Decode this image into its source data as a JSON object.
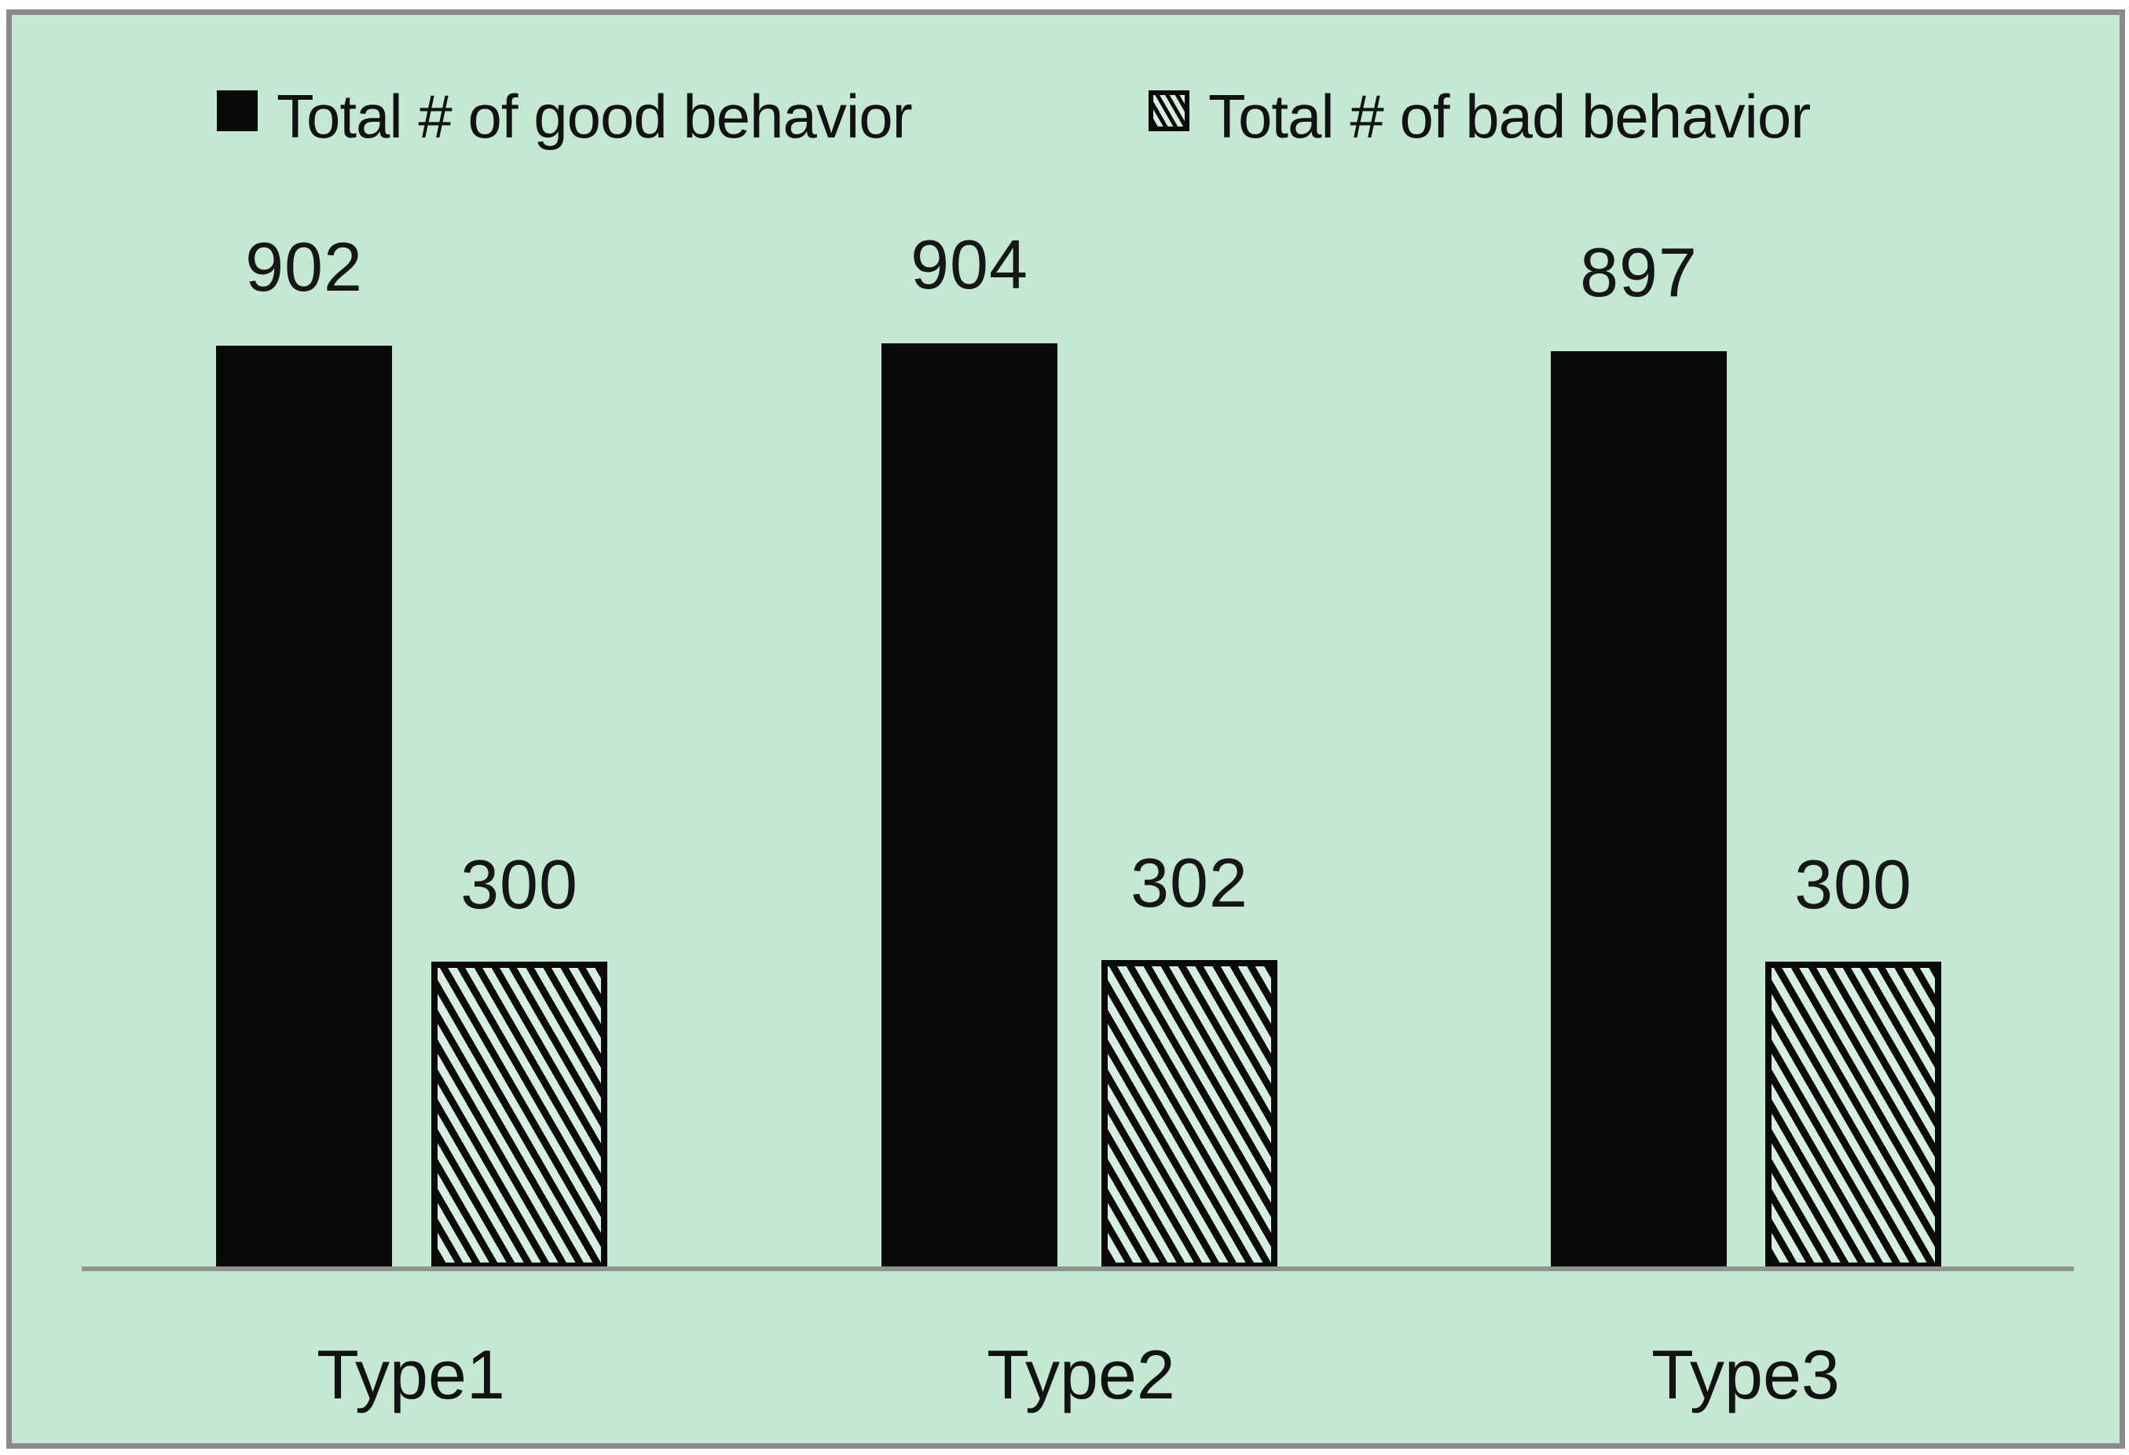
{
  "colors": {
    "background": "#c5e8d2",
    "frame_gray": "#8a8a8a",
    "axis_gray": "#8f948f",
    "bar_black": "#0a0a0a",
    "hatch_gap_green": "#d7efe0",
    "text": "#121212"
  },
  "legend": {
    "position": "top",
    "good_swatch_icon": "solid-black-square",
    "bad_swatch_icon": "diagonal-hatch-square"
  },
  "chart_data": {
    "type": "bar",
    "title": "",
    "xlabel": "",
    "ylabel": "",
    "categories": [
      "Type1",
      "Type2",
      "Type3"
    ],
    "series": [
      {
        "name": "Total # of good behavior",
        "fill": "solid-black",
        "values": [
          902,
          904,
          897
        ]
      },
      {
        "name": "Total # of bad behavior",
        "fill": "diagonal-hatch",
        "values": [
          300,
          302,
          300
        ]
      }
    ],
    "ylim": [
      0,
      1000
    ],
    "grid": false,
    "axis_labels_shown": false,
    "data_labels": true,
    "legend_position": "top"
  }
}
